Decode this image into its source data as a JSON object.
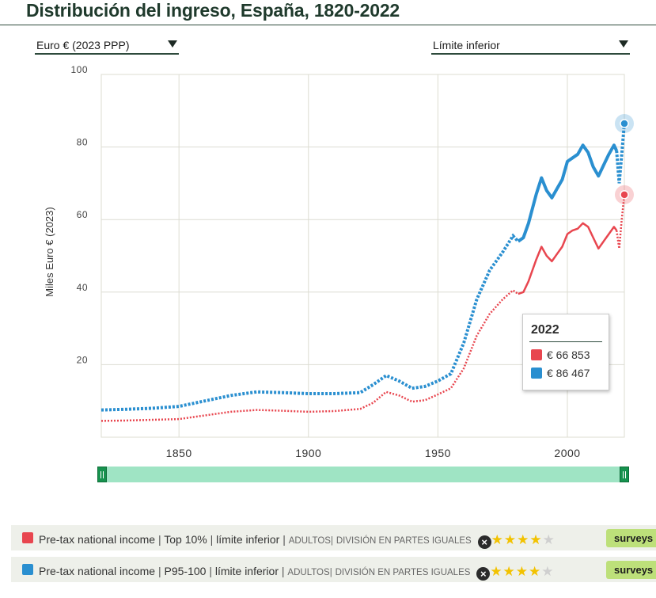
{
  "title": "Distribución del ingreso, España, 1820-2022",
  "unit_selector": {
    "label": "Euro € (2023 PPP)"
  },
  "measure_selector": {
    "label": "Límite inferior"
  },
  "tooltip": {
    "year": "2022",
    "values": [
      {
        "text": "€ 66 853",
        "color": "#e8464f"
      },
      {
        "text": "€ 86 467",
        "color": "#2a8fd0"
      }
    ]
  },
  "legend": [
    {
      "color": "#e8464f",
      "name": "Pre-tax national income",
      "group": "Top 10%",
      "measure": "límite inferior",
      "population": "ADULTOS",
      "split": "DIVISIÓN EN PARTES IGUALES",
      "rating": 4,
      "tag": "surveys a"
    },
    {
      "color": "#2a8fd0",
      "name": "Pre-tax national income",
      "group": "P95-100",
      "measure": "límite inferior",
      "population": "ADULTOS",
      "split": "DIVISIÓN EN PARTES IGUALES",
      "rating": 4,
      "tag": "surveys a"
    }
  ],
  "chart_data": {
    "type": "line",
    "title": "Distribución del ingreso, España, 1820-2022",
    "ylabel": "Miles Euro € (2023)",
    "xlabel": "",
    "xlim": [
      1820,
      2022
    ],
    "ylim": [
      0,
      100
    ],
    "xticks": [
      1850,
      1900,
      1950,
      2000
    ],
    "yticks": [
      20,
      40,
      60,
      80,
      100
    ],
    "grid": true,
    "series": [
      {
        "name": "Pre-tax national income | Top 10% | límite inferior",
        "color": "#e8464f",
        "points": [
          [
            1820,
            4.5
          ],
          [
            1830,
            4.6
          ],
          [
            1840,
            4.8
          ],
          [
            1850,
            5.0
          ],
          [
            1860,
            6.0
          ],
          [
            1870,
            7.0
          ],
          [
            1880,
            7.5
          ],
          [
            1890,
            7.3
          ],
          [
            1900,
            7.0
          ],
          [
            1910,
            7.2
          ],
          [
            1920,
            7.8
          ],
          [
            1925,
            9.5
          ],
          [
            1930,
            12.5
          ],
          [
            1935,
            11.5
          ],
          [
            1940,
            9.8
          ],
          [
            1945,
            10.2
          ],
          [
            1950,
            11.8
          ],
          [
            1955,
            13.5
          ],
          [
            1960,
            19.0
          ],
          [
            1965,
            28.0
          ],
          [
            1970,
            34.0
          ],
          [
            1975,
            38.0
          ],
          [
            1979,
            40.5
          ],
          [
            1981,
            39.5
          ],
          [
            1983,
            40.0
          ],
          [
            1985,
            43.0
          ],
          [
            1988,
            49.0
          ],
          [
            1990,
            52.5
          ],
          [
            1992,
            50.0
          ],
          [
            1994,
            48.5
          ],
          [
            1996,
            50.5
          ],
          [
            1998,
            52.5
          ],
          [
            2000,
            56.0
          ],
          [
            2002,
            57.0
          ],
          [
            2004,
            57.5
          ],
          [
            2006,
            59.0
          ],
          [
            2008,
            58.0
          ],
          [
            2010,
            55.0
          ],
          [
            2012,
            52.0
          ],
          [
            2014,
            54.0
          ],
          [
            2016,
            56.0
          ],
          [
            2018,
            58.0
          ],
          [
            2019,
            57.0
          ],
          [
            2020,
            52.0
          ],
          [
            2021,
            60.0
          ],
          [
            2022,
            66.853
          ]
        ]
      },
      {
        "name": "Pre-tax national income | P95-100 | límite inferior",
        "color": "#2a8fd0",
        "points": [
          [
            1820,
            7.5
          ],
          [
            1830,
            7.7
          ],
          [
            1840,
            8.0
          ],
          [
            1850,
            8.5
          ],
          [
            1860,
            10.0
          ],
          [
            1870,
            11.5
          ],
          [
            1880,
            12.5
          ],
          [
            1890,
            12.3
          ],
          [
            1900,
            12.0
          ],
          [
            1910,
            12.0
          ],
          [
            1920,
            12.3
          ],
          [
            1925,
            14.5
          ],
          [
            1930,
            17.0
          ],
          [
            1935,
            15.5
          ],
          [
            1940,
            13.5
          ],
          [
            1945,
            14.0
          ],
          [
            1950,
            15.5
          ],
          [
            1955,
            17.5
          ],
          [
            1960,
            26.0
          ],
          [
            1965,
            38.0
          ],
          [
            1970,
            46.0
          ],
          [
            1975,
            51.0
          ],
          [
            1979,
            55.5
          ],
          [
            1981,
            54.0
          ],
          [
            1983,
            55.0
          ],
          [
            1985,
            59.0
          ],
          [
            1988,
            67.0
          ],
          [
            1990,
            71.5
          ],
          [
            1992,
            68.0
          ],
          [
            1994,
            66.0
          ],
          [
            1996,
            68.5
          ],
          [
            1998,
            71.0
          ],
          [
            2000,
            76.0
          ],
          [
            2002,
            77.0
          ],
          [
            2004,
            78.0
          ],
          [
            2006,
            80.5
          ],
          [
            2008,
            78.5
          ],
          [
            2010,
            74.5
          ],
          [
            2012,
            72.0
          ],
          [
            2014,
            75.0
          ],
          [
            2016,
            78.0
          ],
          [
            2018,
            80.5
          ],
          [
            2019,
            79.0
          ],
          [
            2020,
            70.0
          ],
          [
            2021,
            78.0
          ],
          [
            2022,
            86.467
          ]
        ]
      }
    ],
    "solid_segments": [
      [
        1981,
        2019
      ]
    ]
  }
}
